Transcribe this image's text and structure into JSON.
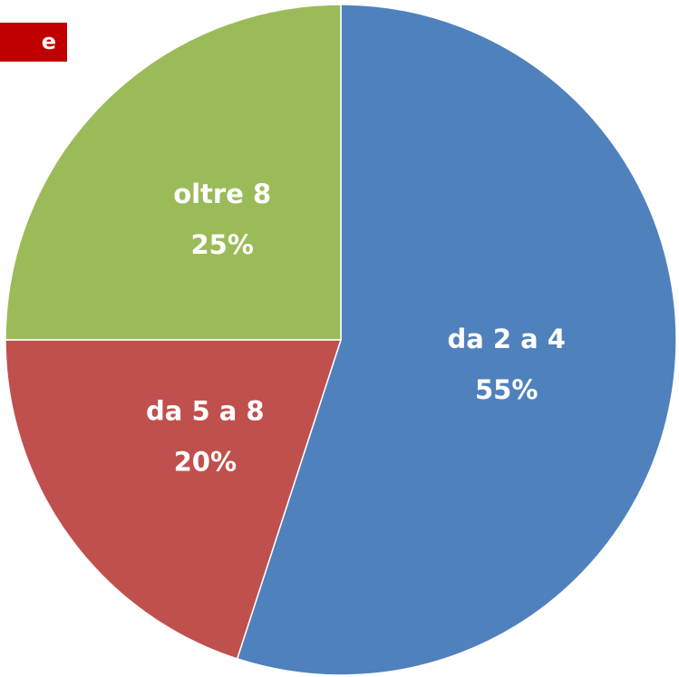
{
  "chart_data": {
    "type": "pie",
    "annotation": "e",
    "categories": [
      "da 2 a 4",
      "da 5 a 8",
      "oltre 8"
    ],
    "values": [
      55,
      20,
      25
    ],
    "value_labels": [
      "55%",
      "20%",
      "25%"
    ],
    "colors": [
      "#4f81bd",
      "#c0504d",
      "#9bbb59"
    ],
    "start_angle": 0,
    "direction": "clockwise"
  }
}
